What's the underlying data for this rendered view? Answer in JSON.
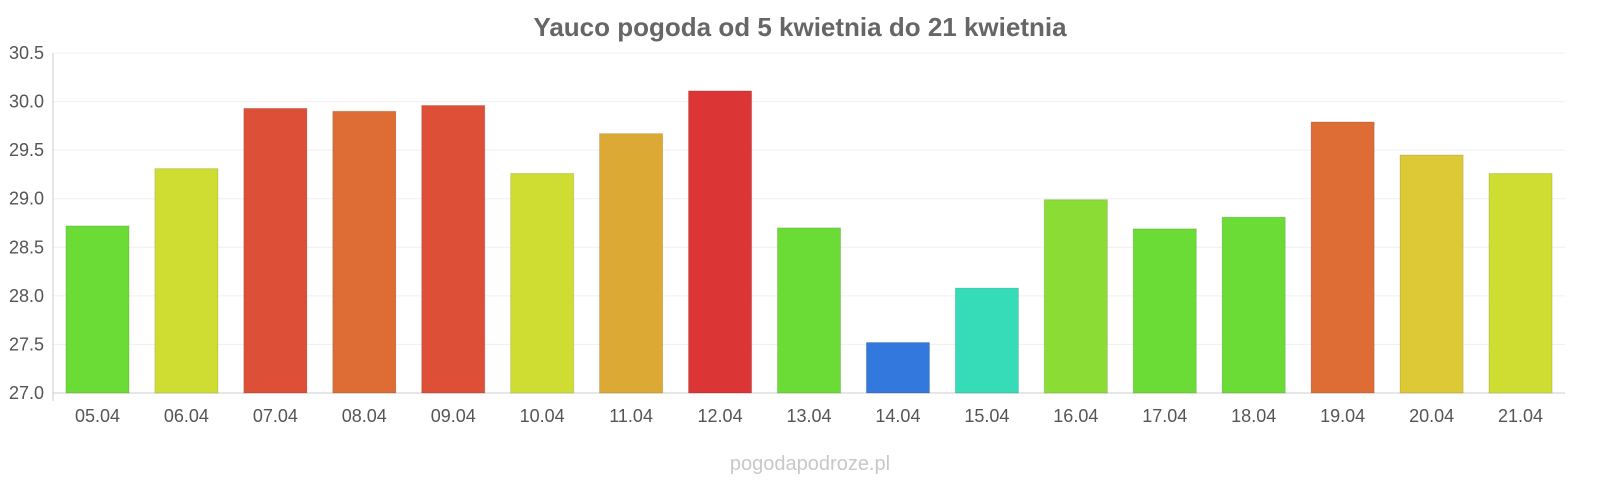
{
  "chart_data": {
    "type": "bar",
    "title": "Yauco pogoda od 5 kwietnia do 21 kwietnia",
    "categories": [
      "05.04",
      "06.04",
      "07.04",
      "08.04",
      "09.04",
      "10.04",
      "11.04",
      "12.04",
      "13.04",
      "14.04",
      "15.04",
      "16.04",
      "17.04",
      "18.04",
      "19.04",
      "20.04",
      "21.04"
    ],
    "values": [
      28.72,
      29.31,
      29.93,
      29.9,
      29.96,
      29.26,
      29.67,
      30.11,
      28.7,
      27.52,
      28.08,
      28.99,
      28.69,
      28.81,
      29.79,
      29.45,
      29.26
    ],
    "colors": [
      "#6bdc36",
      "#cfdd33",
      "#dd4f36",
      "#de6c35",
      "#dd5037",
      "#cfdd33",
      "#dcaa34",
      "#dc3535",
      "#6bdc36",
      "#3378dc",
      "#36dcb7",
      "#8bdd36",
      "#6bdc36",
      "#6bdc36",
      "#de6c35",
      "#dcc935",
      "#cfdd33"
    ],
    "ylim": [
      27.0,
      30.5
    ],
    "yticks": [
      "27.0",
      "27.5",
      "28.0",
      "28.5",
      "29.0",
      "29.5",
      "30.0",
      "30.5"
    ],
    "xlabel": "",
    "ylabel": "",
    "grid": true
  },
  "watermark": "pogodapodroze.pl"
}
